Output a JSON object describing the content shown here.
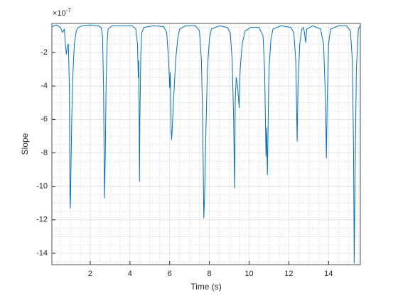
{
  "chart_data": {
    "type": "line",
    "xlabel": "Time (s)",
    "ylabel": "Slope",
    "y_multiplier": {
      "base": "×10",
      "exponent": "-7"
    },
    "xlim": [
      0.07,
      15.6
    ],
    "ylim": [
      -14.68,
      -0.26
    ],
    "xticks": [
      2,
      4,
      6,
      8,
      10,
      12,
      14
    ],
    "yticks": [
      -14,
      -12,
      -10,
      -8,
      -6,
      -4,
      -2
    ],
    "xminorticks": [
      0.5,
      1,
      1.5,
      2.5,
      3,
      3.5,
      4.5,
      5,
      5.5,
      6.5,
      7,
      7.5,
      8.5,
      9,
      9.5,
      10.5,
      11,
      11.5,
      12.5,
      13,
      13.5,
      14.5,
      15,
      15.5
    ],
    "yminorticks": [
      -14.5,
      -13.5,
      -13,
      -12.5,
      -11.5,
      -11,
      -10.5,
      -9.5,
      -9,
      -8.5,
      -7.5,
      -7,
      -6.5,
      -5.5,
      -5,
      -4.5,
      -3.5,
      -3,
      -2.5,
      -1.5,
      -1,
      -0.5
    ],
    "grid": true,
    "minor_grid": true,
    "series": [
      {
        "color": "#0072bd",
        "x": [
          0.07,
          0.3,
          0.5,
          0.6,
          0.7,
          0.75,
          0.8,
          0.85,
          0.9,
          0.95,
          0.98,
          1.0,
          1.03,
          1.07,
          1.12,
          1.2,
          1.3,
          1.4,
          1.6,
          2.0,
          2.4,
          2.55,
          2.62,
          2.67,
          2.72,
          2.76,
          2.8,
          2.85,
          2.9,
          3.1,
          3.6,
          4.1,
          4.3,
          4.38,
          4.42,
          4.44,
          4.46,
          4.48,
          4.5,
          4.55,
          4.6,
          4.7,
          5.2,
          5.7,
          5.85,
          5.95,
          6.0,
          6.03,
          6.07,
          6.1,
          6.14,
          6.2,
          6.3,
          6.4,
          6.5,
          6.8,
          7.3,
          7.5,
          7.6,
          7.66,
          7.72,
          7.76,
          7.82,
          7.9,
          8.0,
          8.1,
          8.5,
          8.9,
          9.05,
          9.15,
          9.22,
          9.27,
          9.3,
          9.35,
          9.42,
          9.5,
          9.55,
          9.65,
          9.8,
          10.1,
          10.5,
          10.7,
          10.78,
          10.85,
          10.88,
          10.92,
          10.96,
          11.0,
          11.1,
          11.2,
          11.6,
          12.1,
          12.25,
          12.35,
          12.42,
          12.46,
          12.55,
          12.65,
          12.75,
          12.85,
          12.9,
          13.2,
          13.6,
          13.75,
          13.85,
          13.89,
          13.93,
          14.0,
          14.1,
          14.5,
          14.9,
          15.1,
          15.2,
          15.26,
          15.29,
          15.33,
          15.4,
          15.5,
          15.6
        ],
        "values": [
          -0.45,
          -0.35,
          -0.5,
          -0.8,
          -0.6,
          -1.5,
          -2.1,
          -1.6,
          -1.5,
          -4,
          -10.6,
          -11.3,
          -9,
          -6,
          -3.5,
          -1.5,
          -0.7,
          -0.5,
          -0.4,
          -0.35,
          -0.4,
          -0.5,
          -1,
          -4,
          -10.7,
          -8,
          -4,
          -1.5,
          -0.6,
          -0.4,
          -0.4,
          -0.4,
          -0.6,
          -1.5,
          -3.5,
          -2.5,
          -5,
          -9.7,
          -6,
          -2,
          -0.8,
          -0.5,
          -0.4,
          -0.45,
          -0.8,
          -2.5,
          -4.1,
          -3.2,
          -6.5,
          -7.2,
          -6.3,
          -4.8,
          -2.5,
          -1.2,
          -0.6,
          -0.4,
          -0.4,
          -0.7,
          -2.5,
          -6,
          -11.9,
          -10.5,
          -7,
          -3,
          -1.2,
          -0.6,
          -0.4,
          -0.5,
          -0.8,
          -2.5,
          -6,
          -10.1,
          -5,
          -3.5,
          -4,
          -5.3,
          -3,
          -1.5,
          -0.7,
          -0.5,
          -0.5,
          -1,
          -3,
          -8.2,
          -6.5,
          -9.3,
          -6,
          -3,
          -1.2,
          -0.6,
          -0.4,
          -0.5,
          -0.8,
          -2.5,
          -7.3,
          -4,
          -1.5,
          -0.6,
          -0.5,
          -1.4,
          -0.6,
          -0.4,
          -0.6,
          -1.5,
          -5,
          -8.3,
          -5,
          -1.5,
          -0.6,
          -0.4,
          -0.4,
          -0.7,
          -2.5,
          -8,
          -14.6,
          -10,
          -3,
          -0.6,
          -0.4
        ]
      }
    ]
  }
}
